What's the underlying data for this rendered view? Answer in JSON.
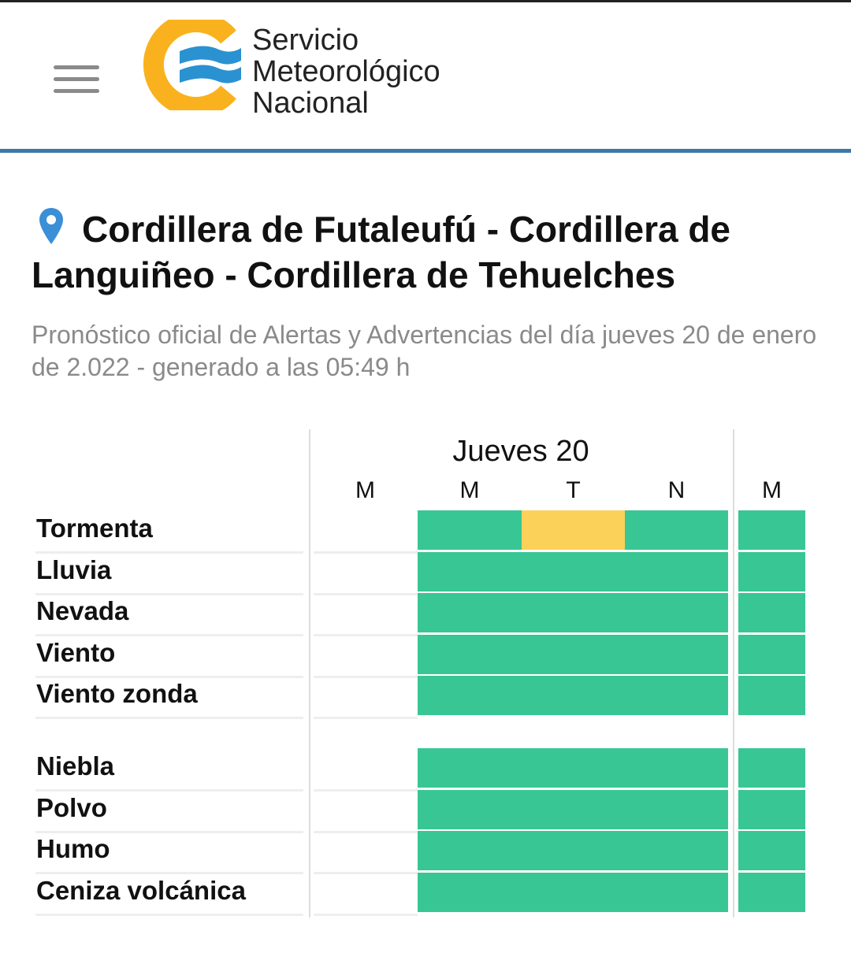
{
  "header": {
    "logo_text": [
      "Servicio",
      "Meteorológico",
      "Nacional"
    ],
    "menu_icon": "hamburger-icon"
  },
  "location": {
    "icon": "map-pin-icon",
    "title": "Cordillera de Futaleufú - Cordillera de Languiñeo - Cordillera de Tehuelches"
  },
  "subtitle": "Pronóstico oficial de Alertas y Advertencias del día jueves 20 de enero de 2.022 - generado a las 05:49 h",
  "table": {
    "day_label": "Jueves 20",
    "periods": [
      "M",
      "M",
      "T",
      "N",
      "M"
    ],
    "colors": {
      "green": "#38c695",
      "yellow": "#fcd15a",
      "none": "#ffffff"
    },
    "groups": [
      [
        {
          "name": "Tormenta",
          "levels": [
            "none",
            "green",
            "yellow",
            "green",
            "green"
          ]
        },
        {
          "name": "Lluvia",
          "levels": [
            "none",
            "green",
            "green",
            "green",
            "green"
          ]
        },
        {
          "name": "Nevada",
          "levels": [
            "none",
            "green",
            "green",
            "green",
            "green"
          ]
        },
        {
          "name": "Viento",
          "levels": [
            "none",
            "green",
            "green",
            "green",
            "green"
          ]
        },
        {
          "name": "Viento zonda",
          "levels": [
            "none",
            "green",
            "green",
            "green",
            "green"
          ]
        }
      ],
      [
        {
          "name": "Niebla",
          "levels": [
            "none",
            "green",
            "green",
            "green",
            "green"
          ]
        },
        {
          "name": "Polvo",
          "levels": [
            "none",
            "green",
            "green",
            "green",
            "green"
          ]
        },
        {
          "name": "Humo",
          "levels": [
            "none",
            "green",
            "green",
            "green",
            "green"
          ]
        },
        {
          "name": "Ceniza volcánica",
          "levels": [
            "none",
            "green",
            "green",
            "green",
            "green"
          ]
        }
      ]
    ]
  }
}
